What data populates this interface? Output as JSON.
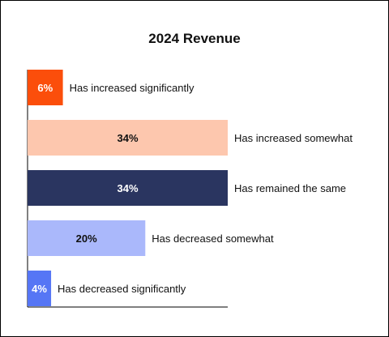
{
  "chart_data": {
    "type": "bar",
    "orientation": "horizontal",
    "title": "2024 Revenue",
    "categories": [
      "Has increased significantly",
      "Has increased somewhat",
      "Has remained the same",
      "Has decreased somewhat",
      "Has decreased significantly"
    ],
    "values": [
      6,
      34,
      34,
      20,
      4
    ],
    "value_labels": [
      "6%",
      "34%",
      "34%",
      "20%",
      "4%"
    ],
    "colors": [
      "#fb4e0b",
      "#fdc7ae",
      "#2a3560",
      "#aab8fb",
      "#5676f5"
    ],
    "value_label_colors": [
      "#ffffff",
      "#111111",
      "#ffffff",
      "#111111",
      "#ffffff"
    ],
    "xlim": [
      0,
      34
    ],
    "grid": false,
    "legend": "none"
  }
}
